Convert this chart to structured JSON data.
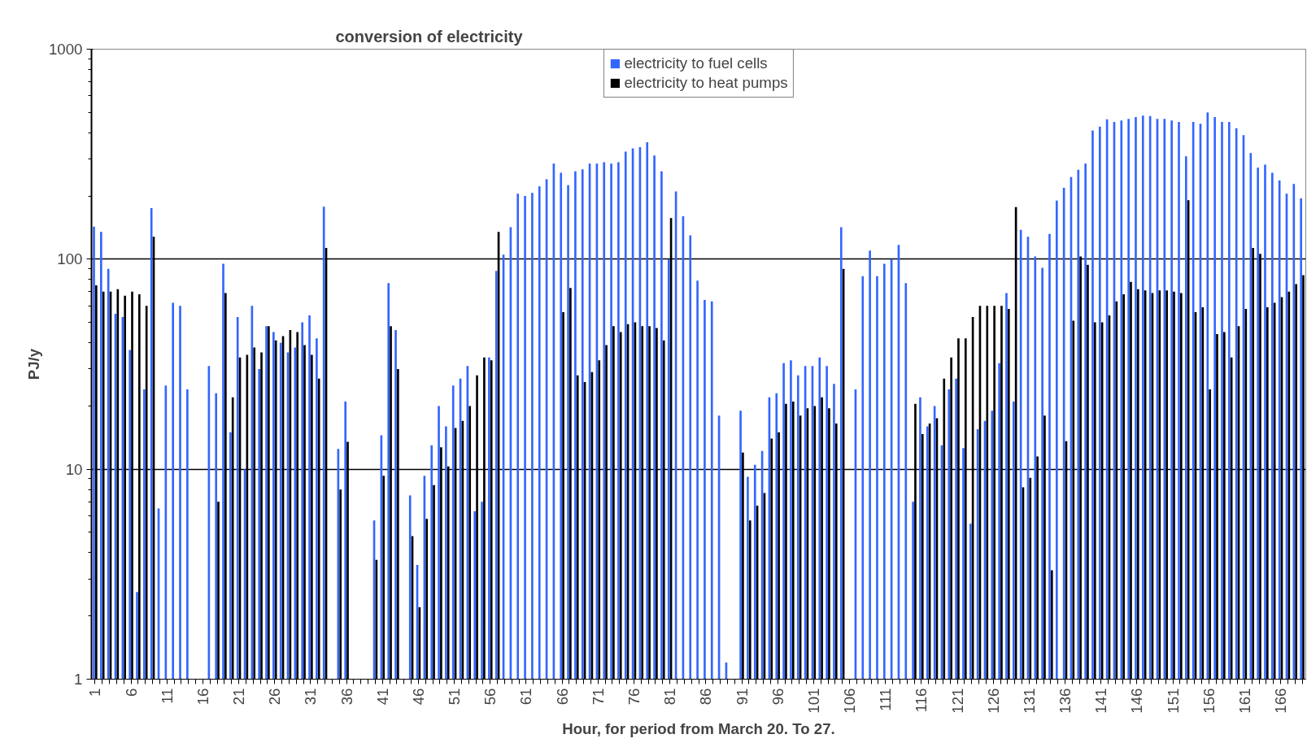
{
  "chart_data": {
    "type": "bar",
    "title": "conversion of electricity",
    "xlabel": "Hour, for period from March 20. To 27.",
    "ylabel": "PJ/y",
    "categories": [
      "1",
      null,
      null,
      null,
      null,
      "6",
      null,
      null,
      null,
      null,
      "11",
      null,
      null,
      null,
      null,
      "16",
      null,
      null,
      null,
      null,
      "21",
      null,
      null,
      null,
      null,
      "26",
      null,
      null,
      null,
      null,
      "31",
      null,
      null,
      null,
      null,
      "36",
      null,
      null,
      null,
      null,
      "41",
      null,
      null,
      null,
      null,
      "46",
      null,
      null,
      null,
      null,
      "51",
      null,
      null,
      null,
      null,
      "56",
      null,
      null,
      null,
      null,
      "61",
      null,
      null,
      null,
      null,
      "66",
      null,
      null,
      null,
      null,
      "71",
      null,
      null,
      null,
      null,
      "76",
      null,
      null,
      null,
      null,
      "81",
      null,
      null,
      null,
      null,
      "86",
      null,
      null,
      null,
      null,
      "91",
      null,
      null,
      null,
      null,
      "96",
      null,
      null,
      null,
      null,
      "101",
      null,
      null,
      null,
      null,
      "106",
      null,
      null,
      null,
      null,
      "111",
      null,
      null,
      null,
      null,
      "116",
      null,
      null,
      null,
      null,
      "121",
      null,
      null,
      null,
      null,
      "126",
      null,
      null,
      null,
      null,
      "131",
      null,
      null,
      null,
      null,
      "136",
      null,
      null,
      null,
      null,
      "141",
      null,
      null,
      null,
      null,
      "146",
      null,
      null,
      null,
      null,
      "151",
      null,
      null,
      null,
      null,
      "156",
      null,
      null,
      null,
      null,
      "161",
      null,
      null,
      null,
      null,
      "166",
      null,
      null,
      null
    ],
    "series": [
      {
        "name": "electricity to fuel cells",
        "color": "#3366ff",
        "values": [
          143,
          135,
          90,
          55,
          53,
          37,
          2.6,
          24,
          175,
          6.5,
          25,
          62,
          60,
          24,
          null,
          null,
          31,
          23,
          95,
          15,
          53,
          10,
          60,
          30,
          48,
          45,
          40,
          36,
          38,
          50,
          54,
          42,
          178,
          null,
          12.5,
          21,
          null,
          null,
          null,
          5.7,
          14.5,
          77,
          46,
          null,
          7.5,
          3.5,
          9.3,
          13,
          20,
          16,
          25,
          27,
          31,
          6.3,
          7,
          34,
          88,
          105,
          142,
          205,
          200,
          207,
          222,
          240,
          285,
          258,
          225,
          262,
          268,
          285,
          285,
          290,
          285,
          290,
          325,
          337,
          342,
          360,
          312,
          262,
          100,
          210,
          160,
          130,
          79,
          64,
          63,
          18,
          1.2,
          null,
          19,
          9.2,
          10.5,
          12.2,
          22,
          23,
          32,
          33,
          28,
          31,
          31,
          34,
          31,
          25.5,
          142,
          null,
          24,
          83,
          110,
          83,
          95,
          100,
          117,
          77,
          7,
          22,
          16,
          20,
          13,
          24,
          27,
          12.6,
          5.5,
          15.5,
          17,
          19,
          32,
          69,
          21,
          138,
          128,
          103,
          91,
          132,
          190,
          219,
          246,
          267,
          285,
          410,
          428,
          464,
          450,
          457,
          466,
          475,
          483,
          480,
          466,
          466,
          457,
          450,
          309,
          450,
          441,
          500,
          475,
          450,
          450,
          420,
          390,
          320,
          273,
          282,
          258,
          237,
          205,
          228,
          195
        ]
      },
      {
        "name": "electricity to heat pumps",
        "color": "#000000",
        "values": [
          75,
          70,
          70,
          72,
          67,
          70,
          68,
          60,
          128,
          null,
          null,
          null,
          null,
          null,
          null,
          null,
          null,
          7,
          69,
          22,
          34,
          35,
          38,
          36,
          48,
          41,
          43,
          46,
          45,
          39,
          35,
          27,
          113,
          null,
          8,
          13.5,
          null,
          null,
          null,
          3.7,
          9.3,
          48,
          30,
          null,
          4.8,
          2.2,
          5.8,
          8.4,
          12.7,
          10.3,
          15.7,
          17,
          20,
          28,
          34,
          33,
          135,
          null,
          null,
          null,
          null,
          null,
          null,
          null,
          null,
          56,
          73,
          28,
          26,
          29,
          33,
          39,
          48,
          45,
          49,
          50,
          48,
          48,
          47,
          41,
          157,
          null,
          null,
          null,
          null,
          null,
          null,
          null,
          null,
          null,
          12,
          5.7,
          6.7,
          7.7,
          14,
          15,
          20.5,
          21,
          18,
          19.5,
          20,
          22,
          19.5,
          16.5,
          90,
          null,
          null,
          null,
          null,
          null,
          null,
          null,
          null,
          null,
          20.5,
          14.7,
          16.5,
          17.5,
          27,
          34,
          42,
          42,
          53,
          60,
          60,
          60,
          60,
          58,
          177,
          8.2,
          9.1,
          11.5,
          18,
          3.3,
          null,
          13.6,
          51,
          103,
          94,
          50,
          50,
          54,
          63,
          68,
          78,
          72,
          71,
          69,
          71,
          71,
          70,
          69,
          191,
          56,
          59,
          24,
          44,
          45,
          34,
          48,
          58,
          113,
          106,
          59,
          62,
          66,
          70,
          76,
          84
        ]
      }
    ],
    "ylim": [
      1,
      1000
    ],
    "yticks": [
      1,
      10,
      100,
      1000
    ],
    "log": "y",
    "grid": "y",
    "legend": "top"
  }
}
